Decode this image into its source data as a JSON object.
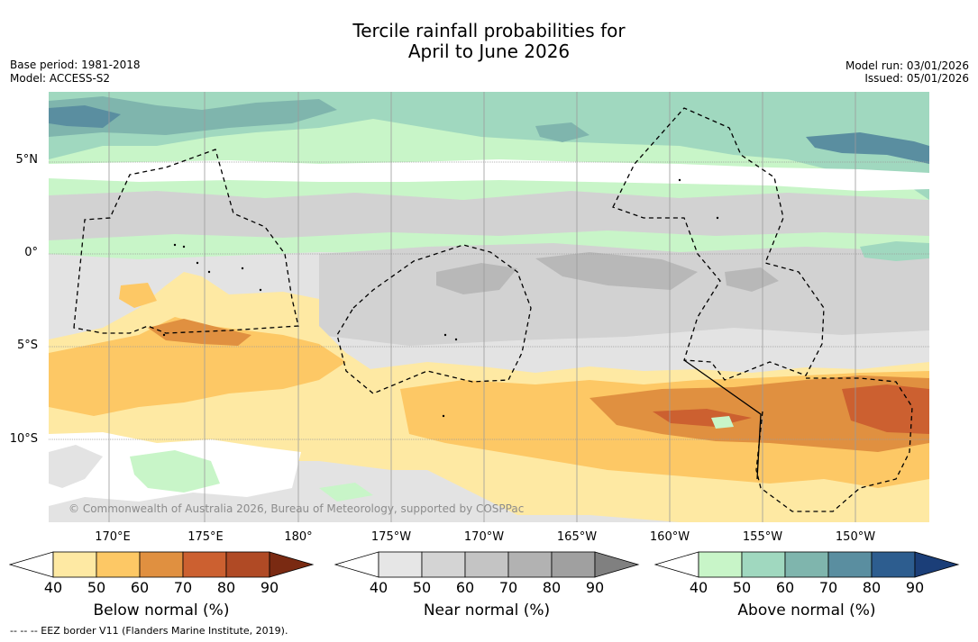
{
  "title_line1": "Tercile rainfall probabilities for",
  "title_line2": "April to June 2026",
  "base_period": "Base period: 1981-2018",
  "model": "Model: ACCESS-S2",
  "model_run": "Model run: 03/01/2026",
  "issued": "Issued: 05/01/2026",
  "lat_labels": [
    "5°N",
    "0°",
    "5°S",
    "10°S"
  ],
  "lon_labels": [
    "170°E",
    "175°E",
    "180°",
    "175°W",
    "170°W",
    "165°W",
    "160°W",
    "155°W",
    "150°W"
  ],
  "credit": "© Commonwealth of Australia 2026, Bureau of Meteorology, supported by COSPPac",
  "footer": "--  --  -- EEZ border V11 (Flanders Marine Institute, 2019).",
  "colorbars": [
    {
      "title": "Below normal (%)",
      "ticks": [
        "40",
        "50",
        "60",
        "70",
        "80",
        "90"
      ],
      "colors": [
        "#ffffff",
        "#fee9a3",
        "#fdc865",
        "#e09040",
        "#cc6030",
        "#b04a25",
        "#7a2a12"
      ]
    },
    {
      "title": "Near normal (%)",
      "ticks": [
        "40",
        "50",
        "60",
        "70",
        "80",
        "90"
      ],
      "colors": [
        "#ffffff",
        "#e6e6e6",
        "#d4d4d4",
        "#c4c4c4",
        "#b2b2b2",
        "#a0a0a0",
        "#808080"
      ]
    },
    {
      "title": "Above normal (%)",
      "ticks": [
        "40",
        "50",
        "60",
        "70",
        "80",
        "90"
      ],
      "colors": [
        "#ffffff",
        "#c8f5c8",
        "#a0d8bf",
        "#7fb5ad",
        "#5a8ea0",
        "#2d5d8f",
        "#1b3e78"
      ]
    }
  ],
  "colors": {
    "grid": "#9a9a9a",
    "white_band": "#ffffff",
    "near_light": "#e3e3e3",
    "near_mid": "#d2d2d2",
    "near_dark": "#b8b8b8",
    "below_light": "#fee9a3",
    "below_mid": "#fdc865",
    "below_dark": "#e09040",
    "below_darker": "#cc6030",
    "above_light": "#c8f5c8",
    "above_mid": "#a0d8bf",
    "above_teal": "#7fb5ad",
    "above_blue": "#5a8ea0"
  }
}
